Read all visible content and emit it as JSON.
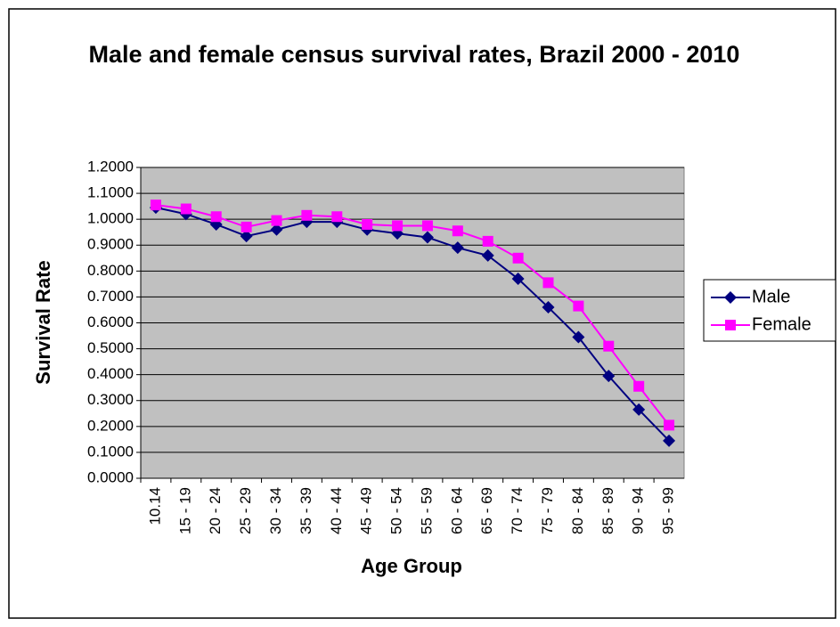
{
  "chart_data": {
    "type": "line",
    "title": "Male and female census survival rates, Brazil 2000 - 2010",
    "x_label": "Age Group",
    "y_label": "Survival Rate",
    "categories": [
      "10.14",
      "15 - 19",
      "20 - 24",
      "25 - 29",
      "30 - 34",
      "35 - 39",
      "40 - 44",
      "45 - 49",
      "50 - 54",
      "55 - 59",
      "60 - 64",
      "65 - 69",
      "70 - 74",
      "75 - 79",
      "80 - 84",
      "85 - 89",
      "90 - 94",
      "95 - 99"
    ],
    "series": [
      {
        "name": "Male",
        "color": "#000080",
        "marker": "diamond",
        "values": [
          1.045,
          1.02,
          0.98,
          0.935,
          0.96,
          0.99,
          0.99,
          0.96,
          0.945,
          0.93,
          0.89,
          0.86,
          0.77,
          0.66,
          0.545,
          0.395,
          0.265,
          0.145
        ]
      },
      {
        "name": "Female",
        "color": "#ff00ff",
        "marker": "square",
        "values": [
          1.055,
          1.04,
          1.01,
          0.97,
          0.995,
          1.015,
          1.01,
          0.98,
          0.975,
          0.975,
          0.955,
          0.915,
          0.85,
          0.755,
          0.665,
          0.51,
          0.355,
          0.205
        ]
      }
    ],
    "ylim": [
      0,
      1.2
    ],
    "yticks": [
      {
        "value": 0,
        "label": "0.0000"
      },
      {
        "value": 0.1,
        "label": "0.1000"
      },
      {
        "value": 0.2,
        "label": "0.2000"
      },
      {
        "value": 0.3,
        "label": "0.3000"
      },
      {
        "value": 0.4,
        "label": "0.4000"
      },
      {
        "value": 0.5,
        "label": "0.5000"
      },
      {
        "value": 0.6,
        "label": "0.6000"
      },
      {
        "value": 0.7,
        "label": "0.7000"
      },
      {
        "value": 0.8,
        "label": "0.8000"
      },
      {
        "value": 0.9,
        "label": "0.9000"
      },
      {
        "value": 1.0,
        "label": "1.0000"
      },
      {
        "value": 1.1,
        "label": "1.1000"
      },
      {
        "value": 1.2,
        "label": "1.2000"
      }
    ],
    "grid": true,
    "plot_background": "#c0c0c0",
    "legend": "right"
  }
}
